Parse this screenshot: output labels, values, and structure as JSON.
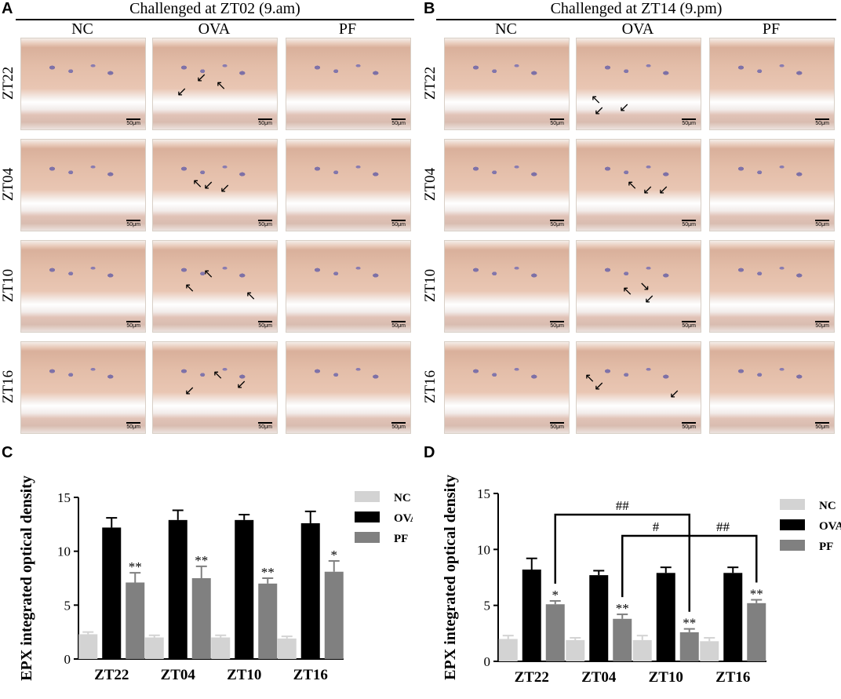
{
  "panels": {
    "A": {
      "letter": "A",
      "banner": "Challenged at ZT02 (9.am)"
    },
    "B": {
      "letter": "B",
      "banner": "Challenged at ZT14 (9.pm)"
    },
    "C": {
      "letter": "C"
    },
    "D": {
      "letter": "D"
    }
  },
  "columns": [
    "NC",
    "OVA",
    "PF"
  ],
  "rows": [
    "ZT22",
    "ZT04",
    "ZT10",
    "ZT16"
  ],
  "scale_bar": "50μm",
  "chart_data": [
    {
      "panel": "C",
      "type": "bar",
      "ylabel": "EPX  integrated optical density",
      "xlabel": "",
      "ylim": [
        0,
        15
      ],
      "yticks": [
        0,
        5,
        10,
        15
      ],
      "categories": [
        "ZT22",
        "ZT04",
        "ZT10",
        "ZT16"
      ],
      "series": [
        {
          "name": "NC",
          "color": "#d3d3d3",
          "values": [
            2.3,
            2.0,
            2.0,
            1.9
          ],
          "errors": [
            0.2,
            0.2,
            0.2,
            0.2
          ],
          "marks": [
            "",
            "",
            "",
            ""
          ]
        },
        {
          "name": "OVA",
          "color": "#000000",
          "values": [
            12.2,
            12.9,
            12.9,
            12.6
          ],
          "errors": [
            0.9,
            0.9,
            0.5,
            1.1
          ],
          "marks": [
            "",
            "",
            "",
            ""
          ]
        },
        {
          "name": "PF",
          "color": "#808080",
          "values": [
            7.1,
            7.5,
            7.0,
            8.1
          ],
          "errors": [
            0.9,
            1.1,
            0.5,
            1.0
          ],
          "marks": [
            "**",
            "**",
            "**",
            "*"
          ]
        }
      ],
      "legend": "top-right",
      "grid": false
    },
    {
      "panel": "D",
      "type": "bar",
      "ylabel": "EPX integrated optical density",
      "xlabel": "",
      "ylim": [
        0,
        15
      ],
      "yticks": [
        0,
        5,
        10,
        15
      ],
      "categories": [
        "ZT22",
        "ZT04",
        "ZT10",
        "ZT16"
      ],
      "series": [
        {
          "name": "NC",
          "color": "#d3d3d3",
          "values": [
            2.0,
            1.9,
            1.9,
            1.8
          ],
          "errors": [
            0.3,
            0.2,
            0.4,
            0.3
          ],
          "marks": [
            "",
            "",
            "",
            ""
          ]
        },
        {
          "name": "OVA",
          "color": "#000000",
          "values": [
            8.2,
            7.7,
            7.9,
            7.9
          ],
          "errors": [
            1.0,
            0.4,
            0.5,
            0.5
          ],
          "marks": [
            "",
            "",
            "",
            ""
          ]
        },
        {
          "name": "PF",
          "color": "#808080",
          "values": [
            5.1,
            3.8,
            2.6,
            5.2
          ],
          "errors": [
            0.3,
            0.4,
            0.3,
            0.3
          ],
          "marks": [
            "*",
            "**",
            "**",
            "**"
          ]
        }
      ],
      "comparisons": [
        {
          "label": "##",
          "from": "ZT22",
          "to": "ZT10"
        },
        {
          "label": "#",
          "from": "ZT04",
          "to": "ZT10"
        },
        {
          "label": "##",
          "from": "ZT10",
          "to": "ZT16"
        }
      ],
      "legend": "top-right",
      "grid": false
    }
  ]
}
